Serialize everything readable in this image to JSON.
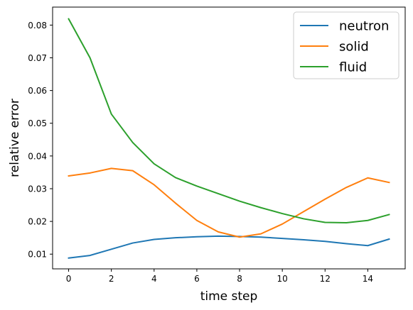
{
  "chart_data": {
    "type": "line",
    "xlabel": "time step",
    "ylabel": "relative error",
    "xlim": [
      -0.75,
      15.75
    ],
    "ylim": [
      0.0055,
      0.0855
    ],
    "xticks": [
      0,
      2,
      4,
      6,
      8,
      10,
      12,
      14
    ],
    "xtick_labels": [
      "0",
      "2",
      "4",
      "6",
      "8",
      "10",
      "12",
      "14"
    ],
    "yticks": [
      0.01,
      0.02,
      0.03,
      0.04,
      0.05,
      0.06,
      0.07,
      0.08
    ],
    "ytick_labels": [
      "0.01",
      "0.02",
      "0.03",
      "0.04",
      "0.05",
      "0.06",
      "0.07",
      "0.08"
    ],
    "grid": false,
    "legend_position": "top-right",
    "x": [
      0,
      1,
      2,
      3,
      4,
      5,
      6,
      7,
      8,
      9,
      10,
      11,
      12,
      13,
      14,
      15
    ],
    "series": [
      {
        "name": "neutron",
        "color": "#1f77b4",
        "values": [
          0.0088,
          0.0096,
          0.0115,
          0.0134,
          0.0145,
          0.015,
          0.0153,
          0.0155,
          0.0154,
          0.0152,
          0.0148,
          0.0144,
          0.0139,
          0.0132,
          0.0126,
          0.0146
        ]
      },
      {
        "name": "solid",
        "color": "#ff7f0e",
        "values": [
          0.0339,
          0.0348,
          0.0362,
          0.0355,
          0.0312,
          0.0256,
          0.0203,
          0.0168,
          0.0152,
          0.0162,
          0.0192,
          0.023,
          0.0268,
          0.0304,
          0.0333,
          0.0319
        ]
      },
      {
        "name": "fluid",
        "color": "#2ca02c",
        "values": [
          0.0819,
          0.07,
          0.0528,
          0.0441,
          0.0376,
          0.0334,
          0.0308,
          0.0285,
          0.0262,
          0.0242,
          0.0224,
          0.0208,
          0.0197,
          0.0196,
          0.0203,
          0.0221
        ]
      }
    ]
  }
}
